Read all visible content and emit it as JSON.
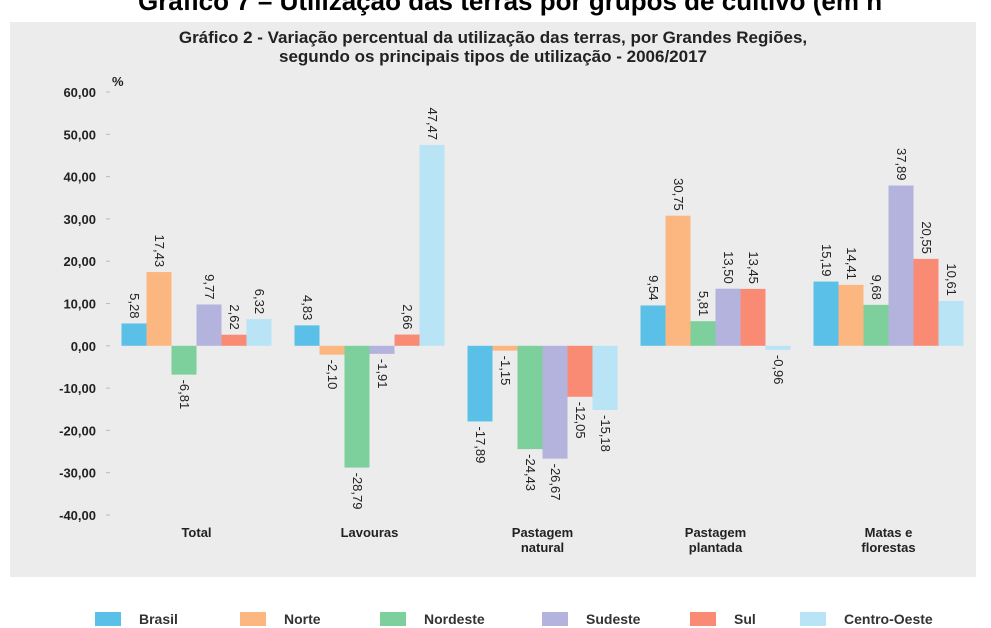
{
  "page_heading": "Gráfico 7 – Utilização das terras por grupos de cultivo (em h",
  "chart_data": {
    "type": "bar",
    "title": "Gráfico 2 - Variação percentual da utilização das terras, por Grandes Regiões,\nsegundo os principais tipos de utilização - 2006/2017",
    "y_unit": "%",
    "categories": [
      "Total",
      "Lavouras",
      "Pastagem\nnatural",
      "Pastagem\nplantada",
      "Matas e\nflorestas"
    ],
    "ylim": [
      -40,
      60
    ],
    "yticks": [
      {
        "value": 60,
        "label": "60,00"
      },
      {
        "value": 50,
        "label": "50,00"
      },
      {
        "value": 40,
        "label": "40,00"
      },
      {
        "value": 30,
        "label": "30,00"
      },
      {
        "value": 20,
        "label": "20,00"
      },
      {
        "value": 10,
        "label": "10,00"
      },
      {
        "value": 0,
        "label": "0,00"
      },
      {
        "value": -10,
        "label": "-10,00"
      },
      {
        "value": -20,
        "label": "-20,00"
      },
      {
        "value": -30,
        "label": "-30,00"
      },
      {
        "value": -40,
        "label": "-40,00"
      }
    ],
    "series": [
      {
        "name": "Brasil",
        "color": "#5bc0e8",
        "values": [
          5.28,
          4.83,
          -17.89,
          9.54,
          15.19
        ],
        "value_labels": [
          "5,28",
          "4,83",
          "-17,89",
          "9,54",
          "15,19"
        ]
      },
      {
        "name": "Norte",
        "color": "#fbb77f",
        "values": [
          17.43,
          -2.1,
          -1.15,
          30.75,
          14.41
        ],
        "value_labels": [
          "17,43",
          "-2,10",
          "-1,15",
          "30,75",
          "14,41"
        ]
      },
      {
        "name": "Nordeste",
        "color": "#7dcf9c",
        "values": [
          -6.81,
          -28.79,
          -24.43,
          5.81,
          9.68
        ],
        "value_labels": [
          "-6,81",
          "-28,79",
          "-24,43",
          "5,81",
          "9,68"
        ]
      },
      {
        "name": "Sudeste",
        "color": "#b3b3dd",
        "values": [
          9.77,
          -1.91,
          -26.67,
          13.5,
          37.89
        ],
        "value_labels": [
          "9,77",
          "-1,91",
          "-26,67",
          "13,50",
          "37,89"
        ]
      },
      {
        "name": "Sul",
        "color": "#f98b75",
        "values": [
          2.62,
          2.66,
          -12.05,
          13.45,
          20.55
        ],
        "value_labels": [
          "2,62",
          "2,66",
          "-12,05",
          "13,45",
          "20,55"
        ]
      },
      {
        "name": "Centro-Oeste",
        "color": "#b9e4f5",
        "values": [
          6.32,
          47.47,
          -15.18,
          -0.96,
          10.61
        ],
        "value_labels": [
          "6,32",
          "47,47",
          "-15,18",
          "-0,96",
          "10,61"
        ]
      }
    ]
  }
}
